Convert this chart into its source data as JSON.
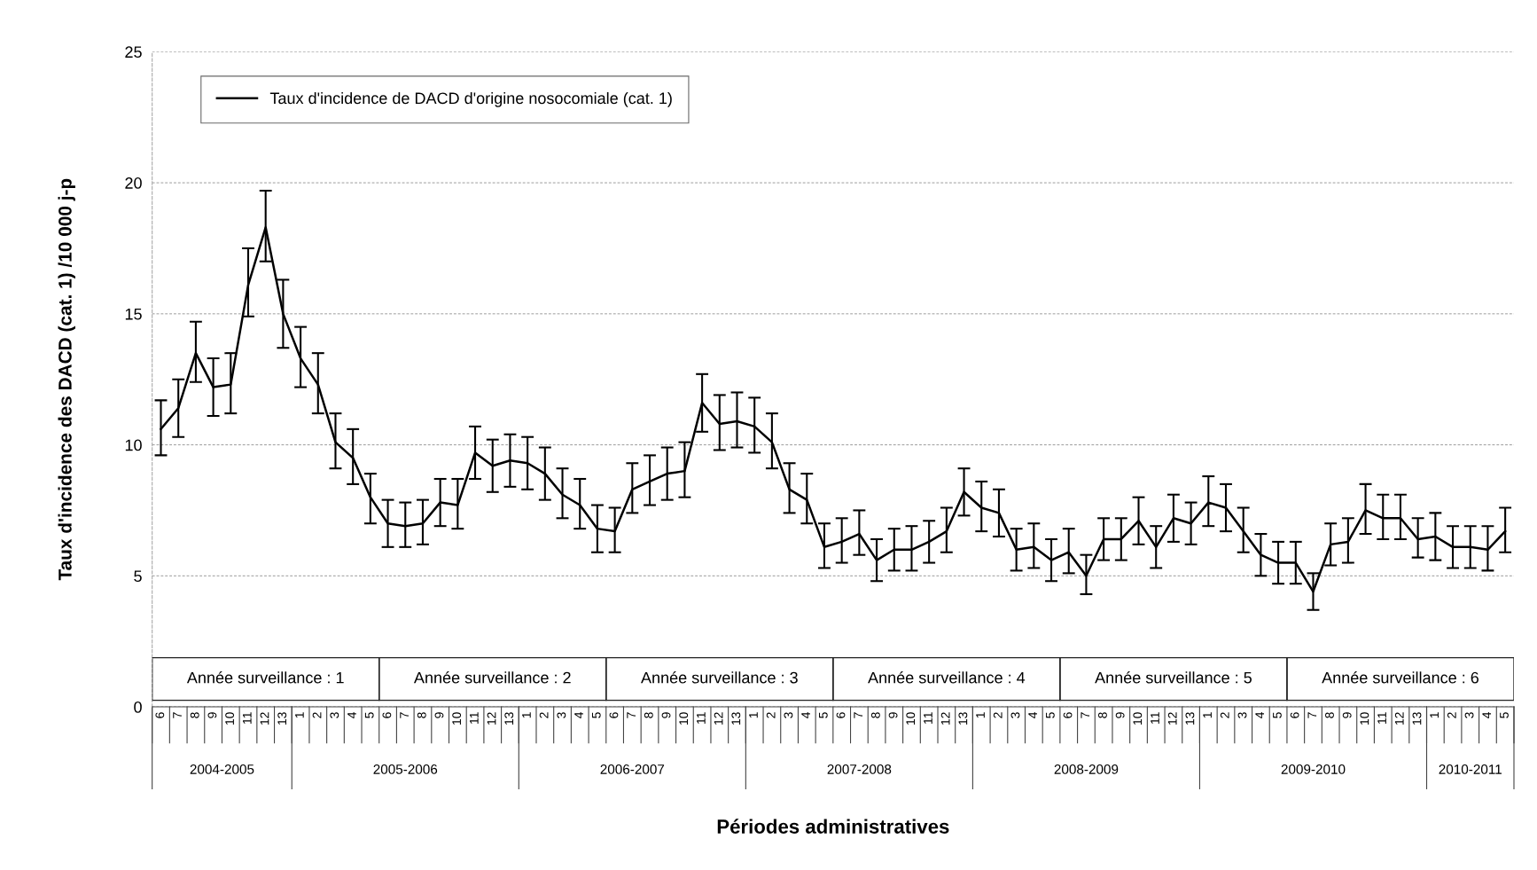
{
  "chart_data": {
    "type": "line",
    "ylabel": "Taux d'incidence des DACD (cat. 1) /10 000 j-p",
    "xlabel": "Périodes administratives",
    "categories": [
      "6",
      "7",
      "8",
      "9",
      "10",
      "11",
      "12",
      "13",
      "1",
      "2",
      "3",
      "4",
      "5",
      "6",
      "7",
      "8",
      "9",
      "10",
      "11",
      "12",
      "13",
      "1",
      "2",
      "3",
      "4",
      "5",
      "6",
      "7",
      "8",
      "9",
      "10",
      "11",
      "12",
      "13",
      "1",
      "2",
      "3",
      "4",
      "5",
      "6",
      "7",
      "8",
      "9",
      "10",
      "11",
      "12",
      "13",
      "1",
      "2",
      "3",
      "4",
      "5",
      "6",
      "7",
      "8",
      "9",
      "10",
      "11",
      "12",
      "13",
      "1",
      "2",
      "3",
      "4",
      "5",
      "6",
      "7",
      "8",
      "9",
      "10",
      "11",
      "12",
      "13",
      "1",
      "2",
      "3",
      "4",
      "5"
    ],
    "series": [
      {
        "name": "Taux d'incidence de DACD d'origine nosocomiale (cat. 1)",
        "color": "#000000",
        "values": [
          10.6,
          11.4,
          13.5,
          12.2,
          12.3,
          16.1,
          18.3,
          15.0,
          13.3,
          12.3,
          10.1,
          9.5,
          8.0,
          7.0,
          6.9,
          7.0,
          7.8,
          7.7,
          9.7,
          9.2,
          9.4,
          9.3,
          8.9,
          8.1,
          7.7,
          6.8,
          6.7,
          8.3,
          8.6,
          8.9,
          9.0,
          11.6,
          10.8,
          10.9,
          10.7,
          10.1,
          8.3,
          7.9,
          6.1,
          6.3,
          6.6,
          5.6,
          6.0,
          6.0,
          6.3,
          6.7,
          8.2,
          7.6,
          7.4,
          6.0,
          6.1,
          5.6,
          5.9,
          5.0,
          6.4,
          6.4,
          7.1,
          6.1,
          7.2,
          7.0,
          7.8,
          7.6,
          6.7,
          5.8,
          5.5,
          5.5,
          4.4,
          6.2,
          6.3,
          7.5,
          7.2,
          7.2,
          6.4,
          6.5,
          6.1,
          6.1,
          6.0,
          6.7
        ],
        "errors": [
          [
            9.6,
            11.7
          ],
          [
            10.3,
            12.5
          ],
          [
            12.4,
            14.7
          ],
          [
            11.1,
            13.3
          ],
          [
            11.2,
            13.5
          ],
          [
            14.9,
            17.5
          ],
          [
            17.0,
            19.7
          ],
          [
            13.7,
            16.3
          ],
          [
            12.2,
            14.5
          ],
          [
            11.2,
            13.5
          ],
          [
            9.1,
            11.2
          ],
          [
            8.5,
            10.6
          ],
          [
            7.0,
            8.9
          ],
          [
            6.1,
            7.9
          ],
          [
            6.1,
            7.8
          ],
          [
            6.2,
            7.9
          ],
          [
            6.9,
            8.7
          ],
          [
            6.8,
            8.7
          ],
          [
            8.7,
            10.7
          ],
          [
            8.2,
            10.2
          ],
          [
            8.4,
            10.4
          ],
          [
            8.3,
            10.3
          ],
          [
            7.9,
            9.9
          ],
          [
            7.2,
            9.1
          ],
          [
            6.8,
            8.7
          ],
          [
            5.9,
            7.7
          ],
          [
            5.9,
            7.6
          ],
          [
            7.4,
            9.3
          ],
          [
            7.7,
            9.6
          ],
          [
            7.9,
            9.9
          ],
          [
            8.0,
            10.1
          ],
          [
            10.5,
            12.7
          ],
          [
            9.8,
            11.9
          ],
          [
            9.9,
            12.0
          ],
          [
            9.7,
            11.8
          ],
          [
            9.1,
            11.2
          ],
          [
            7.4,
            9.3
          ],
          [
            7.0,
            8.9
          ],
          [
            5.3,
            7.0
          ],
          [
            5.5,
            7.2
          ],
          [
            5.8,
            7.5
          ],
          [
            4.8,
            6.4
          ],
          [
            5.2,
            6.8
          ],
          [
            5.2,
            6.9
          ],
          [
            5.5,
            7.1
          ],
          [
            5.9,
            7.6
          ],
          [
            7.3,
            9.1
          ],
          [
            6.7,
            8.6
          ],
          [
            6.5,
            8.3
          ],
          [
            5.2,
            6.8
          ],
          [
            5.3,
            7.0
          ],
          [
            4.8,
            6.4
          ],
          [
            5.1,
            6.8
          ],
          [
            4.3,
            5.8
          ],
          [
            5.6,
            7.2
          ],
          [
            5.6,
            7.2
          ],
          [
            6.2,
            8.0
          ],
          [
            5.3,
            6.9
          ],
          [
            6.3,
            8.1
          ],
          [
            6.2,
            7.8
          ],
          [
            6.9,
            8.8
          ],
          [
            6.7,
            8.5
          ],
          [
            5.9,
            7.6
          ],
          [
            5.0,
            6.6
          ],
          [
            4.7,
            6.3
          ],
          [
            4.7,
            6.3
          ],
          [
            3.7,
            5.1
          ],
          [
            5.4,
            7.0
          ],
          [
            5.5,
            7.2
          ],
          [
            6.6,
            8.5
          ],
          [
            6.4,
            8.1
          ],
          [
            6.4,
            8.1
          ],
          [
            5.7,
            7.2
          ],
          [
            5.6,
            7.4
          ],
          [
            5.3,
            6.9
          ],
          [
            5.3,
            6.9
          ],
          [
            5.2,
            6.9
          ],
          [
            5.9,
            7.6
          ]
        ]
      }
    ],
    "ylim": [
      0,
      25
    ],
    "yticks": [
      0,
      5,
      10,
      15,
      20,
      25
    ],
    "grid": "y",
    "legend": "top left",
    "marker": "none",
    "line_style": "solid",
    "annotations": [
      "Année surveillance : 1",
      "Année surveillance : 2",
      "Année surveillance : 3",
      "Année surveillance : 4",
      "Année surveillance : 5",
      "Année surveillance : 6",
      "2004-2005",
      "2005-2006",
      "2006-2007",
      "2007-2008",
      "2008-2009",
      "2009-2010",
      "2010-2011"
    ]
  }
}
